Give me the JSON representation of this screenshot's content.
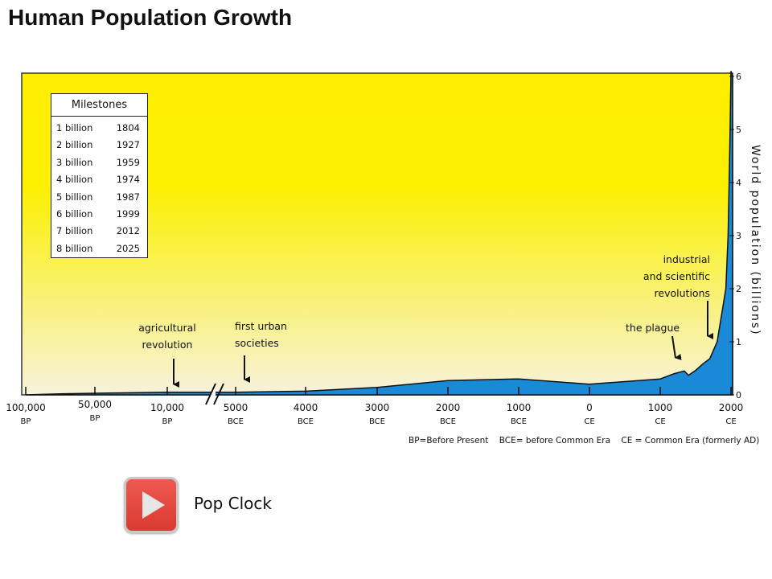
{
  "page": {
    "title": "Human Population Growth"
  },
  "milestones": {
    "title": "Milestones",
    "rows": [
      {
        "label": "1 billion",
        "year": "1804"
      },
      {
        "label": "2 billion",
        "year": "1927"
      },
      {
        "label": "3 billion",
        "year": "1959"
      },
      {
        "label": "4 billion",
        "year": "1974"
      },
      {
        "label": "5 billion",
        "year": "1987"
      },
      {
        "label": "6 billion",
        "year": "1999"
      },
      {
        "label": "7 billion",
        "year": "2012"
      },
      {
        "label": "8 billion",
        "year": "2025"
      }
    ]
  },
  "media": {
    "play_label": "Pop Clock",
    "play_icon": "play-icon",
    "play_color": "#d93a31"
  },
  "chart_data": {
    "type": "area",
    "title": "",
    "ylabel": "World population (billions)",
    "xlabel": "",
    "ylim": [
      0,
      6
    ],
    "y_ticks": [
      "0",
      "1",
      "2",
      "3",
      "4",
      "5",
      "6"
    ],
    "grid": false,
    "background": {
      "top": "#ffee00",
      "bottom": "#f7f2dc"
    },
    "fill_color": "#1a8ad6",
    "axis_break_after": "10,000 BP",
    "x_ticks": [
      {
        "label": "100,000",
        "sub": "BP"
      },
      {
        "label": "50,000",
        "sub": "BP"
      },
      {
        "label": "10,000",
        "sub": "BP"
      },
      {
        "label": "5000",
        "sub": "BCE"
      },
      {
        "label": "4000",
        "sub": "BCE"
      },
      {
        "label": "3000",
        "sub": "BCE"
      },
      {
        "label": "2000",
        "sub": "BCE"
      },
      {
        "label": "1000",
        "sub": "BCE"
      },
      {
        "label": "0",
        "sub": "CE"
      },
      {
        "label": "1000",
        "sub": "CE"
      },
      {
        "label": "2000",
        "sub": "CE"
      }
    ],
    "series": [
      {
        "points": [
          [
            "100,000 BP",
            0.0
          ],
          [
            "75,000 BP",
            0.02
          ],
          [
            "50,000 BP",
            0.03
          ],
          [
            "30,000 BP",
            0.04
          ],
          [
            "10,000 BP",
            0.05
          ],
          [
            "5000 BCE",
            0.05
          ],
          [
            "4000 BCE",
            0.07
          ],
          [
            "3000 BCE",
            0.14
          ],
          [
            "2000 BCE",
            0.27
          ],
          [
            "1000 BCE",
            0.3
          ],
          [
            "0 CE",
            0.2
          ],
          [
            "1000 CE",
            0.3
          ],
          [
            "1200 CE",
            0.4
          ],
          [
            "1340 CE",
            0.45
          ],
          [
            "1400 CE",
            0.37
          ],
          [
            "1500 CE",
            0.46
          ],
          [
            "1600 CE",
            0.58
          ],
          [
            "1700 CE",
            0.68
          ],
          [
            "1804 CE",
            1.0
          ],
          [
            "1927 CE",
            2.0
          ],
          [
            "1959 CE",
            3.0
          ],
          [
            "1974 CE",
            4.0
          ],
          [
            "1987 CE",
            5.0
          ],
          [
            "1999 CE",
            6.0
          ],
          [
            "2000 CE",
            6.1
          ]
        ]
      }
    ],
    "annotations": [
      {
        "lines": [
          "agricultural",
          "revolution"
        ],
        "at": "10,000 BP"
      },
      {
        "lines": [
          "first urban",
          "societies"
        ],
        "at": "5000 BCE"
      },
      {
        "lines": [
          "the plague"
        ],
        "at": "1340 CE"
      },
      {
        "lines": [
          "industrial",
          "and scientific",
          "revolutions"
        ],
        "at": "1750 CE"
      }
    ],
    "legend_note": "BP=Before Present    BCE= before Common Era    CE = Common Era (formerly AD)"
  }
}
